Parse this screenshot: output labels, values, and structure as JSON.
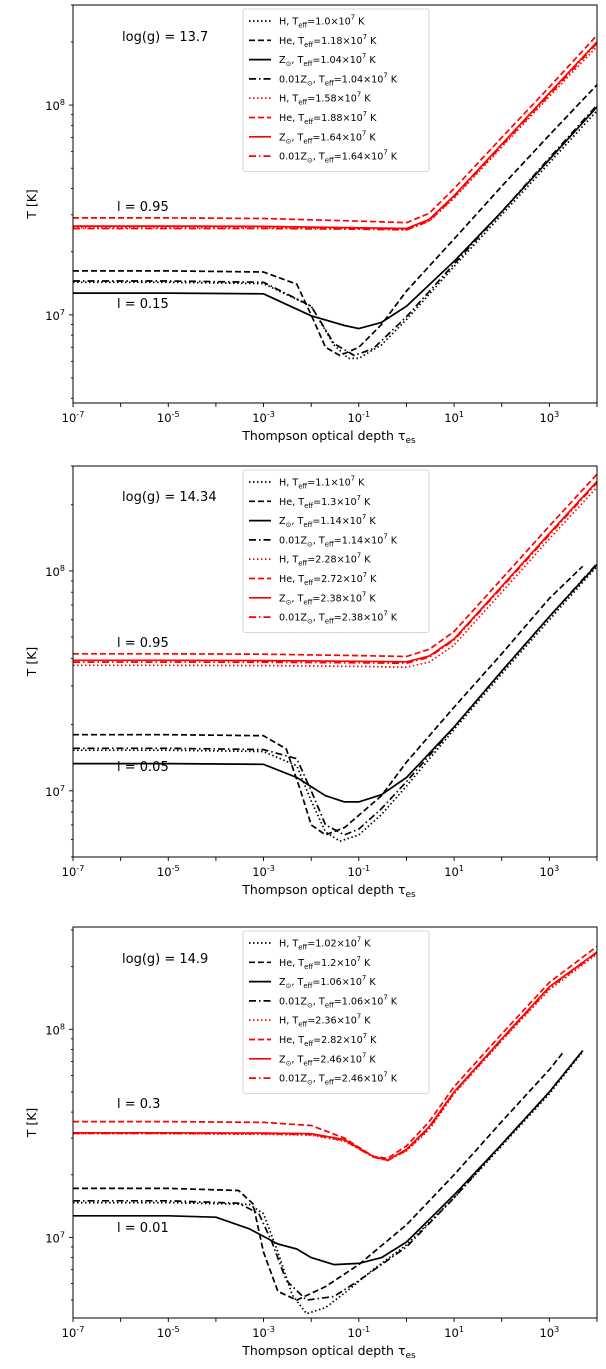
{
  "colors": {
    "black": "#000000",
    "red": "#ff0000"
  },
  "chart_data": [
    {
      "type": "line",
      "xlabel": "Thompson optical depth τ_es",
      "ylabel": "T [K]",
      "x_scale": "log",
      "y_scale": "log",
      "xlim": [
        1e-07,
        10000
      ],
      "ylim": [
        3800000.0,
        300000000.0
      ],
      "xticks": [
        "10^-7",
        "10^-5",
        "10^-3",
        "10^-1",
        "10^1",
        "10^3"
      ],
      "yticks": [
        "10^7",
        "10^8"
      ],
      "annotations": [
        "log(g) = 13.7",
        "l = 0.95",
        "l = 0.15"
      ],
      "legend_position": "top-center",
      "series": [
        {
          "name": "H, T_eff=1.0×10^7 K",
          "color": "black",
          "style": "dotted",
          "x": [
            1e-07,
            1e-05,
            0.001,
            0.01,
            0.03,
            0.06,
            0.1,
            0.3,
            1,
            10,
            100,
            1000,
            10000
          ],
          "y": [
            14300000.0,
            14300000.0,
            14100000.0,
            11000000.0,
            7200000.0,
            6200000.0,
            6200000.0,
            7200000.0,
            9500000.0,
            17000000.0,
            30000000.0,
            53000000.0,
            94000000.0
          ]
        },
        {
          "name": "He, T_eff=1.18×10^7 K",
          "color": "black",
          "style": "dashed",
          "x": [
            1e-07,
            1e-05,
            0.001,
            0.005,
            0.01,
            0.02,
            0.04,
            0.1,
            0.3,
            1,
            10,
            100,
            1000,
            10000
          ],
          "y": [
            16200000.0,
            16200000.0,
            16000000.0,
            14000000.0,
            10000000.0,
            7000000.0,
            6400000.0,
            7000000.0,
            9000000.0,
            13000000.0,
            23000000.0,
            41000000.0,
            72000000.0,
            125000000.0
          ]
        },
        {
          "name": "Z⊙, T_eff=1.04×10^7 K",
          "color": "black",
          "style": "solid",
          "x": [
            1e-07,
            1e-05,
            0.001,
            0.01,
            0.05,
            0.1,
            0.3,
            1,
            10,
            100,
            1000,
            10000
          ],
          "y": [
            12700000.0,
            12700000.0,
            12600000.0,
            9900000.0,
            8900000.0,
            8600000.0,
            9200000.0,
            11000000.0,
            18000000.0,
            31000000.0,
            55000000.0,
            98000000.0
          ]
        },
        {
          "name": "0.01Z⊙, T_eff=1.04×10^7 K",
          "color": "black",
          "style": "dashdot",
          "x": [
            1e-07,
            1e-05,
            0.001,
            0.01,
            0.03,
            0.08,
            0.2,
            1,
            10,
            100,
            1000,
            10000
          ],
          "y": [
            14500000.0,
            14500000.0,
            14300000.0,
            11000000.0,
            7300000.0,
            6400000.0,
            6900000.0,
            9800000.0,
            17500000.0,
            31000000.0,
            56000000.0,
            100000000.0
          ]
        },
        {
          "name": "H, T_eff=1.58×10^7 K",
          "color": "red",
          "style": "dotted",
          "x": [
            1e-07,
            1e-05,
            0.001,
            0.1,
            1,
            3,
            10,
            100,
            1000,
            10000
          ],
          "y": [
            26000000.0,
            26000000.0,
            26000000.0,
            25800000.0,
            25500000.0,
            28000000.0,
            36000000.0,
            63000000.0,
            110000000.0,
            190000000.0
          ]
        },
        {
          "name": "He, T_eff=1.88×10^7 K",
          "color": "red",
          "style": "dashed",
          "x": [
            1e-07,
            1e-05,
            0.001,
            0.1,
            1,
            3,
            10,
            100,
            1000,
            10000
          ],
          "y": [
            29000000.0,
            29000000.0,
            28800000.0,
            28000000.0,
            27500000.0,
            30500000.0,
            40000000.0,
            70000000.0,
            122000000.0,
            215000000.0
          ]
        },
        {
          "name": "Z⊙, T_eff=1.64×10^7 K",
          "color": "red",
          "style": "solid",
          "x": [
            1e-07,
            1e-05,
            0.001,
            0.1,
            1,
            3,
            10,
            100,
            1000,
            10000
          ],
          "y": [
            26500000.0,
            26500000.0,
            26400000.0,
            26000000.0,
            25800000.0,
            28500000.0,
            37000000.0,
            65000000.0,
            114000000.0,
            200000000.0
          ]
        },
        {
          "name": "0.01Z⊙, T_eff=1.64×10^7 K",
          "color": "red",
          "style": "dashdot",
          "x": [
            1e-07,
            1e-05,
            0.001,
            0.1,
            1,
            3,
            10,
            100,
            1000,
            10000
          ],
          "y": [
            25800000.0,
            25800000.0,
            25800000.0,
            25600000.0,
            25400000.0,
            28000000.0,
            36500000.0,
            64000000.0,
            112000000.0,
            197000000.0
          ]
        }
      ]
    },
    {
      "type": "line",
      "xlabel": "Thompson optical depth τ_es",
      "ylabel": "T [K]",
      "x_scale": "log",
      "y_scale": "log",
      "xlim": [
        1e-07,
        10000
      ],
      "ylim": [
        5000000.0,
        300000000.0
      ],
      "xticks": [
        "10^-7",
        "10^-5",
        "10^-3",
        "10^-1",
        "10^1",
        "10^3"
      ],
      "yticks": [
        "10^7",
        "10^8"
      ],
      "annotations": [
        "log(g) = 14.34",
        "l = 0.95",
        "l = 0.05"
      ],
      "legend_position": "top-center",
      "series": [
        {
          "name": "H, T_eff=1.1×10^7 K",
          "color": "black",
          "style": "dotted",
          "x": [
            1e-07,
            1e-05,
            0.001,
            0.005,
            0.01,
            0.02,
            0.04,
            0.1,
            0.3,
            1,
            10,
            100,
            1000,
            10000
          ],
          "y": [
            15300000.0,
            15300000.0,
            15100000.0,
            13000000.0,
            9000000.0,
            6500000.0,
            5900000.0,
            6300000.0,
            7800000.0,
            10500000.0,
            19000000.0,
            34000000.0,
            60000000.0,
            105000000.0
          ]
        },
        {
          "name": "He, T_eff=1.3×10^7 K",
          "color": "black",
          "style": "dashed",
          "x": [
            1e-07,
            1e-05,
            0.001,
            0.003,
            0.006,
            0.01,
            0.02,
            0.05,
            0.3,
            1,
            10,
            100,
            1000,
            5000
          ],
          "y": [
            18000000.0,
            18000000.0,
            17800000.0,
            15500000.0,
            10000000.0,
            7000000.0,
            6300000.0,
            6800000.0,
            9500000.0,
            13500000.0,
            24000000.0,
            42000000.0,
            75000000.0,
            105000000.0
          ]
        },
        {
          "name": "Z⊙, T_eff=1.14×10^7 K",
          "color": "black",
          "style": "solid",
          "x": [
            1e-07,
            1e-05,
            0.001,
            0.005,
            0.02,
            0.05,
            0.1,
            0.3,
            1,
            10,
            100,
            1000,
            10000
          ],
          "y": [
            13300000.0,
            13300000.0,
            13200000.0,
            11500000.0,
            9500000.0,
            8900000.0,
            8900000.0,
            9600000.0,
            11500000.0,
            19500000.0,
            35000000.0,
            62000000.0,
            107000000.0
          ]
        },
        {
          "name": "0.01Z⊙, T_eff=1.14×10^7 K",
          "color": "black",
          "style": "dashdot",
          "x": [
            1e-07,
            1e-05,
            0.001,
            0.005,
            0.01,
            0.02,
            0.05,
            0.1,
            0.3,
            1,
            10,
            100,
            1000,
            10000
          ],
          "y": [
            15600000.0,
            15600000.0,
            15400000.0,
            14000000.0,
            10000000.0,
            7000000.0,
            6300000.0,
            6700000.0,
            8300000.0,
            11000000.0,
            19500000.0,
            35000000.0,
            62000000.0,
            108000000.0
          ]
        },
        {
          "name": "H, T_eff=2.28×10^7 K",
          "color": "red",
          "style": "dotted",
          "x": [
            1e-07,
            1e-05,
            0.001,
            0.1,
            1,
            3,
            10,
            100,
            1000,
            10000
          ],
          "y": [
            37200000.0,
            37200000.0,
            37100000.0,
            36800000.0,
            36500000.0,
            38500000.0,
            46000000.0,
            80000000.0,
            140000000.0,
            240000000.0
          ]
        },
        {
          "name": "He, T_eff=2.72×10^7 K",
          "color": "red",
          "style": "dashed",
          "x": [
            1e-07,
            1e-05,
            0.001,
            0.1,
            1,
            3,
            10,
            100,
            1000,
            10000
          ],
          "y": [
            42000000.0,
            42000000.0,
            41800000.0,
            41200000.0,
            40800000.0,
            44000000.0,
            53000000.0,
            92000000.0,
            160000000.0,
            275000000.0
          ]
        },
        {
          "name": "Z⊙, T_eff=2.38×10^7 K",
          "color": "red",
          "style": "solid",
          "x": [
            1e-07,
            1e-05,
            0.001,
            0.1,
            1,
            3,
            10,
            100,
            1000,
            10000
          ],
          "y": [
            39200000.0,
            39200000.0,
            39100000.0,
            38800000.0,
            38600000.0,
            41000000.0,
            49000000.0,
            85000000.0,
            148000000.0,
            255000000.0
          ]
        },
        {
          "name": "0.01Z⊙, T_eff=2.38×10^7 K",
          "color": "red",
          "style": "dashdot",
          "x": [
            1e-07,
            1e-05,
            0.001,
            0.1,
            1,
            3,
            10,
            100,
            1000,
            10000
          ],
          "y": [
            38500000.0,
            38500000.0,
            38400000.0,
            38200000.0,
            38000000.0,
            40500000.0,
            48500000.0,
            84000000.0,
            146000000.0,
            252000000.0
          ]
        }
      ]
    },
    {
      "type": "line",
      "xlabel": "Thompson optical depth τ_es",
      "ylabel": "T [K]",
      "x_scale": "log",
      "y_scale": "log",
      "xlim": [
        1e-07,
        10000
      ],
      "ylim": [
        4100000.0,
        310000000.0
      ],
      "xticks": [
        "10^-7",
        "10^-5",
        "10^-3",
        "10^-1",
        "10^1",
        "10^3"
      ],
      "yticks": [
        "10^7",
        "10^8"
      ],
      "annotations": [
        "log(g) = 14.9",
        "l = 0.3",
        "l = 0.01"
      ],
      "legend_position": "top-center",
      "series": [
        {
          "name": "H, T_eff=1.02×10^7 K",
          "color": "black",
          "style": "dotted",
          "x": [
            1e-07,
            1e-05,
            0.0005,
            0.001,
            0.002,
            0.004,
            0.008,
            0.02,
            0.05,
            0.2,
            1,
            10,
            100,
            1000,
            5000
          ],
          "y": [
            14700000.0,
            14700000.0,
            14400000.0,
            13000000.0,
            8500000.0,
            5300000.0,
            4300000.0,
            4600000.0,
            5400000.0,
            7000000.0,
            9200000.0,
            15500000.0,
            27500000.0,
            49000000.0,
            78000000.0
          ]
        },
        {
          "name": "He, T_eff=1.2×10^7 K",
          "color": "black",
          "style": "dashed",
          "x": [
            1e-07,
            1e-05,
            0.0003,
            0.0006,
            0.001,
            0.002,
            0.005,
            0.02,
            0.1,
            1,
            10,
            100,
            1000,
            2000
          ],
          "y": [
            17200000.0,
            17200000.0,
            16800000.0,
            14500000.0,
            8500000.0,
            5500000.0,
            5000000.0,
            5800000.0,
            7400000.0,
            11500000.0,
            20000000.0,
            36000000.0,
            64000000.0,
            78000000.0
          ]
        },
        {
          "name": "Z⊙, T_eff=1.06×10^7 K",
          "color": "black",
          "style": "solid",
          "x": [
            1e-07,
            1e-05,
            0.0001,
            0.0005,
            0.002,
            0.005,
            0.01,
            0.03,
            0.1,
            0.3,
            1,
            10,
            100,
            1000,
            5000
          ],
          "y": [
            12700000.0,
            12700000.0,
            12500000.0,
            11000000.0,
            9300000.0,
            8800000.0,
            8000000.0,
            7400000.0,
            7500000.0,
            8000000.0,
            9500000.0,
            16000000.0,
            28000000.0,
            50000000.0,
            79000000.0
          ]
        },
        {
          "name": "0.01Z⊙, T_eff=1.06×10^7 K",
          "color": "black",
          "style": "dashdot",
          "x": [
            1e-07,
            1e-05,
            0.0003,
            0.0008,
            0.0015,
            0.003,
            0.008,
            0.03,
            0.1,
            0.3,
            1,
            10,
            100,
            1000,
            5000
          ],
          "y": [
            15000000.0,
            15000000.0,
            14600000.0,
            13000000.0,
            9500000.0,
            6200000.0,
            5000000.0,
            5200000.0,
            6200000.0,
            7400000.0,
            9000000.0,
            15500000.0,
            28000000.0,
            50000000.0,
            79000000.0
          ]
        },
        {
          "name": "H, T_eff=2.36×10^7 K",
          "color": "red",
          "style": "dotted",
          "x": [
            1e-07,
            1e-05,
            0.001,
            0.01,
            0.05,
            0.2,
            0.4,
            1,
            3,
            10,
            100,
            1000,
            10000
          ],
          "y": [
            31500000.0,
            31500000.0,
            31300000.0,
            31000000.0,
            29000000.0,
            24500000.0,
            23500000.0,
            26000000.0,
            33000000.0,
            49000000.0,
            88000000.0,
            155000000.0,
            230000000.0
          ]
        },
        {
          "name": "He, T_eff=2.82×10^7 K",
          "color": "red",
          "style": "dashed",
          "x": [
            1e-07,
            1e-05,
            0.001,
            0.01,
            0.05,
            0.2,
            0.4,
            1,
            3,
            10,
            100,
            1000,
            10000
          ],
          "y": [
            36000000.0,
            36000000.0,
            35700000.0,
            34500000.0,
            30000000.0,
            24500000.0,
            24000000.0,
            27500000.0,
            36000000.0,
            53000000.0,
            95000000.0,
            168000000.0,
            250000000.0
          ]
        },
        {
          "name": "Z⊙, T_eff=2.46×10^7 K",
          "color": "red",
          "style": "solid",
          "x": [
            1e-07,
            1e-05,
            0.001,
            0.01,
            0.05,
            0.2,
            0.4,
            1,
            3,
            10,
            100,
            1000,
            10000
          ],
          "y": [
            31800000.0,
            31800000.0,
            31700000.0,
            31500000.0,
            29500000.0,
            24500000.0,
            23500000.0,
            26500000.0,
            34000000.0,
            50000000.0,
            90000000.0,
            160000000.0,
            235000000.0
          ]
        },
        {
          "name": "0.01Z⊙, T_eff=2.46×10^7 K",
          "color": "red",
          "style": "dashdot",
          "x": [
            1e-07,
            1e-05,
            0.001,
            0.01,
            0.05,
            0.2,
            0.4,
            1,
            3,
            10,
            100,
            1000,
            10000
          ],
          "y": [
            31600000.0,
            31600000.0,
            31500000.0,
            31200000.0,
            29200000.0,
            24300000.0,
            23400000.0,
            26200000.0,
            33500000.0,
            49500000.0,
            89000000.0,
            158000000.0,
            233000000.0
          ]
        }
      ]
    }
  ]
}
